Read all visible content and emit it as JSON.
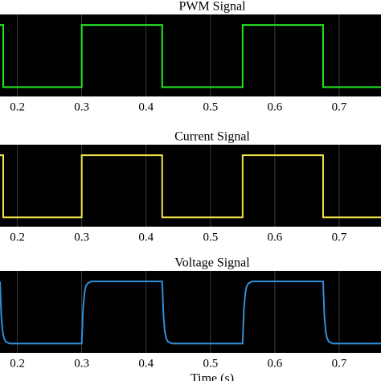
{
  "chart_data": [
    {
      "type": "line",
      "title": "PWM Signal",
      "color": "#22e622",
      "x": [
        0.173,
        0.178,
        0.178,
        0.3,
        0.3,
        0.425,
        0.425,
        0.55,
        0.55,
        0.675,
        0.675,
        0.765
      ],
      "values": [
        1,
        1,
        0,
        0,
        1,
        1,
        0,
        0,
        1,
        1,
        0,
        0
      ],
      "xlim": [
        0.173,
        0.765
      ],
      "ylim": [
        -0.15,
        1.17
      ],
      "xticks": [
        0.2,
        0.3,
        0.4,
        0.5,
        0.6,
        0.7
      ],
      "grid": true
    },
    {
      "type": "line",
      "title": "Current Signal",
      "color": "#f2e64a",
      "x": [
        0.173,
        0.178,
        0.178,
        0.3,
        0.3,
        0.425,
        0.425,
        0.55,
        0.55,
        0.675,
        0.675,
        0.765
      ],
      "values": [
        1,
        1,
        0,
        0,
        1,
        1,
        0,
        0,
        1,
        1,
        0,
        0
      ],
      "xlim": [
        0.173,
        0.765
      ],
      "ylim": [
        -0.15,
        1.17
      ],
      "xticks": [
        0.2,
        0.3,
        0.4,
        0.5,
        0.6,
        0.7
      ],
      "grid": true
    },
    {
      "type": "line",
      "title": "Voltage Signal",
      "xlabel": "Time (s)",
      "color": "#2f8fdc",
      "x": [
        0.173,
        0.175,
        0.177,
        0.179,
        0.182,
        0.188,
        0.3,
        0.302,
        0.304,
        0.306,
        0.309,
        0.315,
        0.425,
        0.427,
        0.429,
        0.431,
        0.434,
        0.44,
        0.55,
        0.552,
        0.554,
        0.556,
        0.559,
        0.565,
        0.675,
        0.677,
        0.679,
        0.681,
        0.684,
        0.69,
        0.765
      ],
      "values": [
        1,
        0.45,
        0.2,
        0.09,
        0.03,
        0,
        0,
        0.55,
        0.8,
        0.91,
        0.97,
        1,
        1,
        0.45,
        0.2,
        0.09,
        0.03,
        0,
        0,
        0.55,
        0.8,
        0.91,
        0.97,
        1,
        1,
        0.45,
        0.2,
        0.09,
        0.03,
        0,
        0
      ],
      "xlim": [
        0.173,
        0.765
      ],
      "ylim": [
        -0.15,
        1.17
      ],
      "xticks": [
        0.2,
        0.3,
        0.4,
        0.5,
        0.6,
        0.7
      ],
      "grid": true
    }
  ]
}
